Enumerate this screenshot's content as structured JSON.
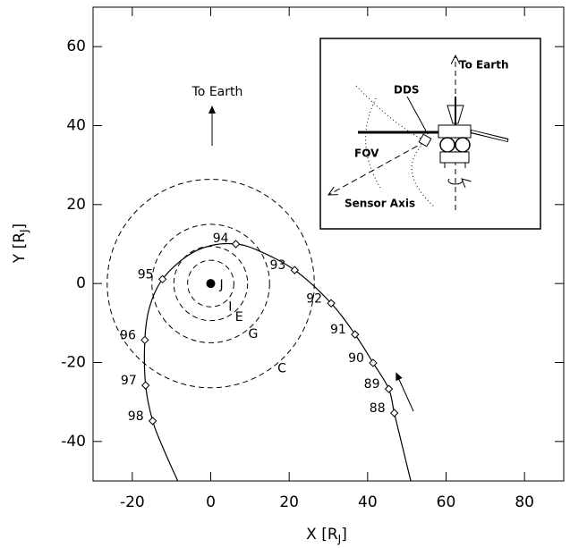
{
  "chart_data": {
    "type": "orbit",
    "xlabel": [
      "X [R",
      "J",
      "]"
    ],
    "ylabel": [
      "Y [R",
      "J",
      "]"
    ],
    "xlim": [
      -30,
      90
    ],
    "xticks": [
      -20,
      0,
      20,
      40,
      60,
      80
    ],
    "ylim": [
      -50,
      70
    ],
    "yticks": [
      -40,
      -20,
      0,
      20,
      40,
      60
    ],
    "annotation": "To Earth",
    "planet": {
      "label": "J",
      "x": 0,
      "y": 0
    },
    "moons": {
      "labels": [
        "I",
        "E",
        "G",
        "C"
      ],
      "radius": [
        5.9,
        9.4,
        15,
        26.4
      ]
    },
    "orbit": {
      "x": [
        51,
        48.8,
        46.8,
        45.4,
        41.4,
        36.8,
        30.7,
        21.4,
        12,
        6.4,
        0,
        -6,
        -12.3,
        -15.6,
        -16.8,
        -16.6,
        -14.8,
        -12,
        -8.4
      ],
      "y": [
        -50,
        -41,
        -32.8,
        -26.7,
        -20.1,
        -12.9,
        -5,
        3.4,
        8.4,
        10,
        9.6,
        7,
        1.1,
        -6,
        -14.3,
        -25.8,
        -34.8,
        -42,
        -50
      ]
    },
    "passes": {
      "labels": [
        "88",
        "89",
        "90",
        "91",
        "92",
        "93",
        "94",
        "95",
        "96",
        "97",
        "98"
      ],
      "x": [
        46.8,
        45.4,
        41.4,
        36.8,
        30.7,
        21.4,
        6.4,
        -12.3,
        -16.8,
        -16.6,
        -14.8
      ],
      "y": [
        -32.8,
        -26.7,
        -20.1,
        -12.9,
        -5,
        3.4,
        10,
        1.1,
        -14.3,
        -25.8,
        -34.8
      ]
    },
    "inset": {
      "to_earth": "To Earth",
      "dds": "DDS",
      "fov": "FOV",
      "sensor_axis": "Sensor Axis"
    }
  }
}
